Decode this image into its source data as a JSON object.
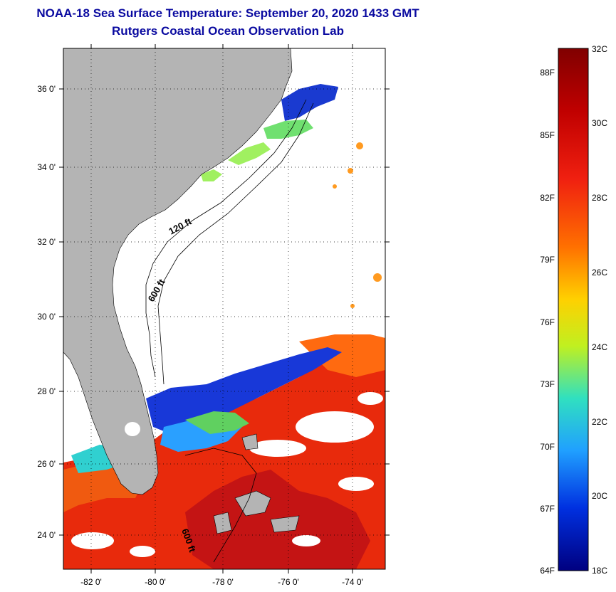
{
  "title": {
    "line1": "NOAA-18 Sea Surface Temperature:  September 20, 2020 1433 GMT",
    "line2": "Rutgers Coastal Ocean Observation Lab"
  },
  "map": {
    "lat_ticks": [
      "36 0'",
      "34 0'",
      "32 0'",
      "30 0'",
      "28 0'",
      "26 0'",
      "24 0'"
    ],
    "lon_ticks": [
      "-82 0'",
      "-80 0'",
      "-78 0'",
      "-76 0'",
      "-74 0'"
    ],
    "contour_labels": [
      "120 ft",
      "600 ft",
      "600 ft"
    ],
    "colors": {
      "land": "#b4b4b4",
      "cloud": "#ffffff"
    }
  },
  "colorbar": {
    "celsius": [
      "32C",
      "30C",
      "28C",
      "26C",
      "24C",
      "22C",
      "20C",
      "18C"
    ],
    "fahrenheit": [
      "88F",
      "85F",
      "82F",
      "79F",
      "76F",
      "73F",
      "70F",
      "67F",
      "64F"
    ],
    "stops": [
      "#800000",
      "#e01010",
      "#ff6000",
      "#ffd000",
      "#c0f020",
      "#30e0c0",
      "#20a0ff",
      "#0040ff",
      "#000080"
    ]
  }
}
